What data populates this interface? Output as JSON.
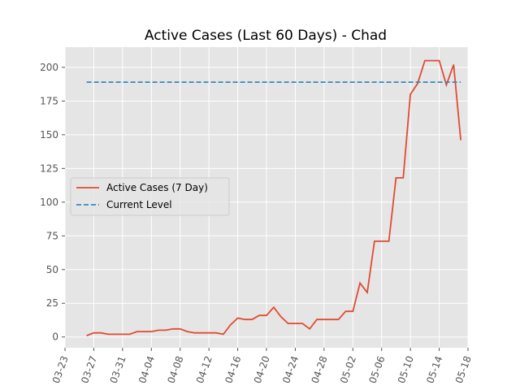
{
  "chart_data": {
    "type": "line",
    "title": "Active Cases (Last 60 Days) - Chad",
    "xlabel": "",
    "ylabel": "",
    "x_ticks": [
      "03-23",
      "03-27",
      "03-31",
      "04-04",
      "04-08",
      "04-12",
      "04-16",
      "04-20",
      "04-24",
      "04-28",
      "05-02",
      "05-06",
      "05-10",
      "05-14",
      "05-18"
    ],
    "y_ticks": [
      "0",
      "25",
      "50",
      "75",
      "100",
      "125",
      "150",
      "175",
      "200"
    ],
    "xlim": [
      "2020-03-23",
      "2020-05-18"
    ],
    "ylim": [
      -8,
      215
    ],
    "grid": true,
    "legend_position": "center-left",
    "series": [
      {
        "name": "Active Cases (7 Day)",
        "color": "#e24a33",
        "style": "solid",
        "x": [
          "2020-03-26",
          "2020-03-27",
          "2020-03-28",
          "2020-03-29",
          "2020-03-30",
          "2020-03-31",
          "2020-04-01",
          "2020-04-02",
          "2020-04-03",
          "2020-04-04",
          "2020-04-05",
          "2020-04-06",
          "2020-04-07",
          "2020-04-08",
          "2020-04-09",
          "2020-04-10",
          "2020-04-11",
          "2020-04-12",
          "2020-04-13",
          "2020-04-14",
          "2020-04-15",
          "2020-04-16",
          "2020-04-17",
          "2020-04-18",
          "2020-04-19",
          "2020-04-20",
          "2020-04-21",
          "2020-04-22",
          "2020-04-23",
          "2020-04-24",
          "2020-04-25",
          "2020-04-26",
          "2020-04-27",
          "2020-04-28",
          "2020-04-29",
          "2020-04-30",
          "2020-05-01",
          "2020-05-02",
          "2020-05-03",
          "2020-05-04",
          "2020-05-05",
          "2020-05-06",
          "2020-05-07",
          "2020-05-08",
          "2020-05-09",
          "2020-05-10",
          "2020-05-11",
          "2020-05-12",
          "2020-05-13",
          "2020-05-14",
          "2020-05-15",
          "2020-05-16",
          "2020-05-17"
        ],
        "values": [
          1,
          3,
          3,
          2,
          2,
          2,
          2,
          4,
          4,
          4,
          5,
          5,
          6,
          6,
          4,
          3,
          3,
          3,
          3,
          2,
          9,
          14,
          13,
          13,
          16,
          16,
          22,
          15,
          10,
          10,
          10,
          6,
          13,
          13,
          13,
          13,
          19,
          19,
          40,
          33,
          71,
          71,
          71,
          118,
          118,
          180,
          188,
          205,
          205,
          205,
          187,
          202,
          146
        ]
      },
      {
        "name": "Current Level",
        "color": "#348abd",
        "style": "dashed",
        "x": [
          "2020-03-26",
          "2020-05-17"
        ],
        "values": [
          189,
          189
        ]
      }
    ]
  }
}
